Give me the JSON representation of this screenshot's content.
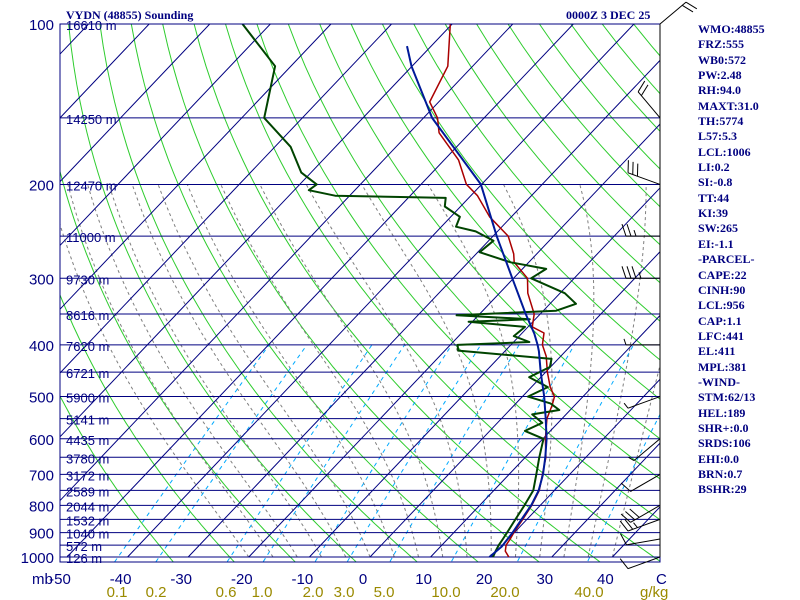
{
  "title": "VYDN (48855) Sounding",
  "time_label": "0000Z  3 DEC 25",
  "colors": {
    "axis": "#000080",
    "isobar": "#000080",
    "isotherm": "#000080",
    "dry_adiabat": "#2ecc2e",
    "moist_adiabat": "#7f7f7f",
    "mixing_ratio": "#00aaff",
    "temperature": "#aa0000",
    "dewpoint": "#004400",
    "parcel": "#001a99",
    "mixing_ratio_label": "#9a8a00",
    "wind_barb": "#000000"
  },
  "chart_data": {
    "type": "skew-t log-p sounding",
    "pressure_axis_unit": "mb",
    "temperature_axis_unit": "C",
    "mixing_ratio_unit": "g/kg",
    "pressure_ticks": [
      100,
      200,
      300,
      400,
      500,
      600,
      700,
      800,
      900,
      1000
    ],
    "temperature_ticks": [
      -50,
      -40,
      -30,
      -20,
      -10,
      0,
      10,
      20,
      30,
      40
    ],
    "temperature_tick_labels": [
      "-50",
      "-40",
      "-30",
      "-20",
      "-10",
      "0",
      "10",
      "20",
      "30",
      "40"
    ],
    "mixing_ratio_ticks": [
      "0.1",
      "0.2",
      "0.6",
      "1.0",
      "2.0",
      "3.0",
      "5.0",
      "10.0",
      "20.0",
      "40.0"
    ],
    "height_labels": [
      {
        "p": 100,
        "label": "16610 m"
      },
      {
        "p": 150,
        "label": "14250 m"
      },
      {
        "p": 200,
        "label": "12470 m"
      },
      {
        "p": 250,
        "label": "11000 m"
      },
      {
        "p": 300,
        "label": "9730 m"
      },
      {
        "p": 350,
        "label": "8616 m"
      },
      {
        "p": 400,
        "label": "7620 m"
      },
      {
        "p": 450,
        "label": "6721 m"
      },
      {
        "p": 500,
        "label": "5900 m"
      },
      {
        "p": 550,
        "label": "5141 m"
      },
      {
        "p": 600,
        "label": "4435 m"
      },
      {
        "p": 650,
        "label": "3780 m"
      },
      {
        "p": 700,
        "label": "3172 m"
      },
      {
        "p": 750,
        "label": "2589 m"
      },
      {
        "p": 800,
        "label": "2044 m"
      },
      {
        "p": 850,
        "label": "1532 m"
      },
      {
        "p": 900,
        "label": "1040 m"
      },
      {
        "p": 950,
        "label": "572 m"
      },
      {
        "p": 1000,
        "label": "126 m"
      }
    ],
    "series": [
      {
        "name": "temperature",
        "points": [
          [
            1000,
            22.9
          ],
          [
            975,
            21.4
          ],
          [
            950,
            20.6
          ],
          [
            925,
            20.3
          ],
          [
            900,
            19.9
          ],
          [
            850,
            19.3
          ],
          [
            800,
            18.6
          ],
          [
            750,
            17.5
          ],
          [
            700,
            15.5
          ],
          [
            650,
            13.4
          ],
          [
            600,
            10.4
          ],
          [
            550,
            7.5
          ],
          [
            520,
            6.3
          ],
          [
            500,
            5.3
          ],
          [
            480,
            3.1
          ],
          [
            450,
            0.3
          ],
          [
            420,
            -2.4
          ],
          [
            400,
            -4.8
          ],
          [
            380,
            -6.4
          ],
          [
            370,
            -9.3
          ],
          [
            350,
            -11.0
          ],
          [
            320,
            -15.3
          ],
          [
            300,
            -17.7
          ],
          [
            280,
            -22.4
          ],
          [
            270,
            -23.8
          ],
          [
            250,
            -27.5
          ],
          [
            230,
            -33.6
          ],
          [
            210,
            -38.9
          ],
          [
            200,
            -42.5
          ],
          [
            180,
            -47.6
          ],
          [
            160,
            -55.1
          ],
          [
            150,
            -57.7
          ],
          [
            140,
            -61.5
          ],
          [
            120,
            -64.1
          ],
          [
            100,
            -70.3
          ]
        ]
      },
      {
        "name": "dewpoint",
        "points": [
          [
            1000,
            20.3
          ],
          [
            975,
            19.8
          ],
          [
            950,
            19.4
          ],
          [
            925,
            19.1
          ],
          [
            900,
            18.8
          ],
          [
            850,
            18.1
          ],
          [
            800,
            17.4
          ],
          [
            750,
            16.5
          ],
          [
            700,
            14.5
          ],
          [
            650,
            12.3
          ],
          [
            600,
            10.1
          ],
          [
            580,
            5.8
          ],
          [
            560,
            7.4
          ],
          [
            540,
            4.4
          ],
          [
            530,
            8.2
          ],
          [
            515,
            5.7
          ],
          [
            500,
            0.9
          ],
          [
            480,
            2.7
          ],
          [
            460,
            -1.9
          ],
          [
            440,
            -0.1
          ],
          [
            425,
            -1.1
          ],
          [
            410,
            -17.8
          ],
          [
            400,
            -18.8
          ],
          [
            395,
            -7.4
          ],
          [
            385,
            -10.9
          ],
          [
            370,
            -10.5
          ],
          [
            362,
            -20.6
          ],
          [
            358,
            -10.9
          ],
          [
            352,
            -23.6
          ],
          [
            345,
            -7.9
          ],
          [
            335,
            -5.7
          ],
          [
            320,
            -9.2
          ],
          [
            300,
            -17.1
          ],
          [
            288,
            -16.1
          ],
          [
            280,
            -23.0
          ],
          [
            268,
            -29.7
          ],
          [
            255,
            -29.2
          ],
          [
            245,
            -33.6
          ],
          [
            240,
            -37.6
          ],
          [
            230,
            -38.5
          ],
          [
            220,
            -42.6
          ],
          [
            212,
            -43.8
          ],
          [
            210,
            -62.4
          ],
          [
            205,
            -67.6
          ],
          [
            200,
            -67.2
          ],
          [
            190,
            -71.6
          ],
          [
            170,
            -77.4
          ],
          [
            150,
            -86.3
          ],
          [
            120,
            -92.6
          ],
          [
            100,
            -104.6
          ]
        ]
      },
      {
        "name": "parcel",
        "points": [
          [
            1000,
            19.7
          ],
          [
            956,
            20.1
          ],
          [
            900,
            19.7
          ],
          [
            850,
            19.1
          ],
          [
            800,
            18.5
          ],
          [
            750,
            17.4
          ],
          [
            700,
            15.6
          ],
          [
            650,
            13.3
          ],
          [
            600,
            10.6
          ],
          [
            550,
            7.3
          ],
          [
            500,
            3.6
          ],
          [
            450,
            -0.8
          ],
          [
            411,
            -4.4
          ],
          [
            400,
            -5.6
          ],
          [
            381,
            -7.9
          ],
          [
            350,
            -12.4
          ],
          [
            300,
            -20.2
          ],
          [
            250,
            -29.4
          ],
          [
            200,
            -40.1
          ],
          [
            150,
            -58.6
          ],
          [
            120,
            -70.1
          ],
          [
            110,
            -74.0
          ]
        ]
      }
    ],
    "wind_barbs": [
      {
        "p": 1000,
        "dir": 250,
        "speed_kt": 10
      },
      {
        "p": 925,
        "dir": 260,
        "speed_kt": 10
      },
      {
        "p": 850,
        "dir": 250,
        "speed_kt": 25
      },
      {
        "p": 800,
        "dir": 240,
        "speed_kt": 30
      },
      {
        "p": 700,
        "dir": 240,
        "speed_kt": 10
      },
      {
        "p": 600,
        "dir": 230,
        "speed_kt": 5
      },
      {
        "p": 500,
        "dir": 250,
        "speed_kt": 5
      },
      {
        "p": 400,
        "dir": 270,
        "speed_kt": 5
      },
      {
        "p": 300,
        "dir": 270,
        "speed_kt": 35
      },
      {
        "p": 250,
        "dir": 270,
        "speed_kt": 25
      },
      {
        "p": 200,
        "dir": 290,
        "speed_kt": 30
      },
      {
        "p": 150,
        "dir": 320,
        "speed_kt": 20
      },
      {
        "p": 100,
        "dir": 50,
        "speed_kt": 20
      }
    ]
  },
  "indices": [
    "WMO:48855",
    "FRZ:555",
    "WB0:572",
    "PW:2.48",
    "RH:94.0",
    "MAXT:31.0",
    "TH:5774",
    "L57:5.3",
    "LCL:1006",
    "LI:0.2",
    "SI:-0.8",
    "TT:44",
    "KI:39",
    "SW:265",
    "EI:-1.1",
    "-PARCEL-",
    "CAPE:22",
    "CINH:90",
    "LCL:956",
    "CAP:1.1",
    "LFC:441",
    "EL:411",
    "MPL:381",
    "-WIND-",
    "STM:62/13",
    "HEL:189",
    "SHR+:0.0",
    "SRDS:106",
    "EHI:0.0",
    "BRN:0.7",
    "BSHR:29"
  ]
}
